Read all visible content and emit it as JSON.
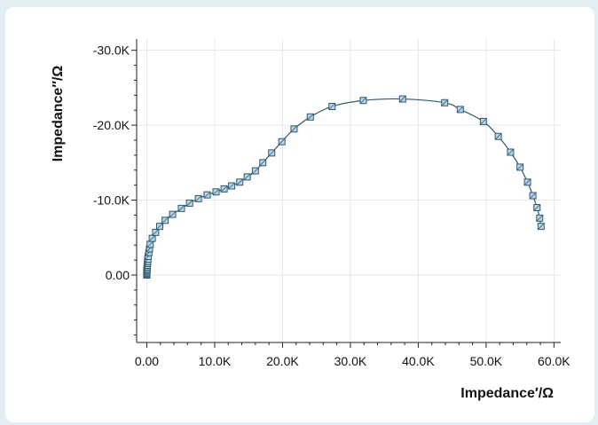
{
  "chart_data": {
    "type": "scatter",
    "title": "",
    "xlabel": "Impedance′/Ω",
    "ylabel": "Impedance″/Ω",
    "xlim": [
      -1500,
      61000
    ],
    "ylim": [
      9000,
      -31500
    ],
    "y_inverted": true,
    "grid": true,
    "x_ticks": [
      0,
      10000,
      20000,
      30000,
      40000,
      50000,
      60000
    ],
    "x_tick_labels": [
      "0.00",
      "10.0K",
      "20.0K",
      "30.0K",
      "40.0K",
      "50.0K",
      "60.0K"
    ],
    "y_ticks": [
      0,
      -10000,
      -20000,
      -30000
    ],
    "y_tick_labels": [
      "0.00",
      "-10.0K",
      "-20.0K",
      "-30.0K"
    ],
    "colors": {
      "line": "#2e5a72",
      "marker_fill": "#b9d4e3",
      "marker_stroke": "#2e5a72",
      "grid": "#e6e6e6"
    },
    "series": [
      {
        "marker": "square",
        "points": [
          [
            0,
            0
          ],
          [
            0,
            -100
          ],
          [
            0,
            -250
          ],
          [
            0,
            -400
          ],
          [
            20,
            -550
          ],
          [
            30,
            -700
          ],
          [
            40,
            -900
          ],
          [
            50,
            -1100
          ],
          [
            70,
            -1300
          ],
          [
            90,
            -1550
          ],
          [
            120,
            -1800
          ],
          [
            160,
            -2100
          ],
          [
            200,
            -2500
          ],
          [
            300,
            -3000
          ],
          [
            400,
            -3500
          ],
          [
            500,
            -4100
          ],
          [
            800,
            -4900
          ],
          [
            1300,
            -5700
          ],
          [
            1900,
            -6500
          ],
          [
            2700,
            -7300
          ],
          [
            3800,
            -8100
          ],
          [
            5100,
            -8900
          ],
          [
            6300,
            -9600
          ],
          [
            7600,
            -10200
          ],
          [
            8900,
            -10700
          ],
          [
            10200,
            -11100
          ],
          [
            11400,
            -11500
          ],
          [
            12500,
            -11900
          ],
          [
            13700,
            -12400
          ],
          [
            14800,
            -13100
          ],
          [
            16000,
            -13900
          ],
          [
            17100,
            -15000
          ],
          [
            18400,
            -16300
          ],
          [
            19900,
            -17800
          ],
          [
            21700,
            -19500
          ],
          [
            24100,
            -21100
          ],
          [
            27300,
            -22500
          ],
          [
            31900,
            -23300
          ],
          [
            37700,
            -23500
          ],
          [
            43900,
            -23000
          ],
          [
            46200,
            -22100
          ],
          [
            49600,
            -20500
          ],
          [
            51800,
            -18500
          ],
          [
            53600,
            -16400
          ],
          [
            55000,
            -14400
          ],
          [
            56100,
            -12400
          ],
          [
            56900,
            -10600
          ],
          [
            57500,
            -9000
          ],
          [
            57900,
            -7600
          ],
          [
            58100,
            -6500
          ]
        ]
      }
    ]
  }
}
